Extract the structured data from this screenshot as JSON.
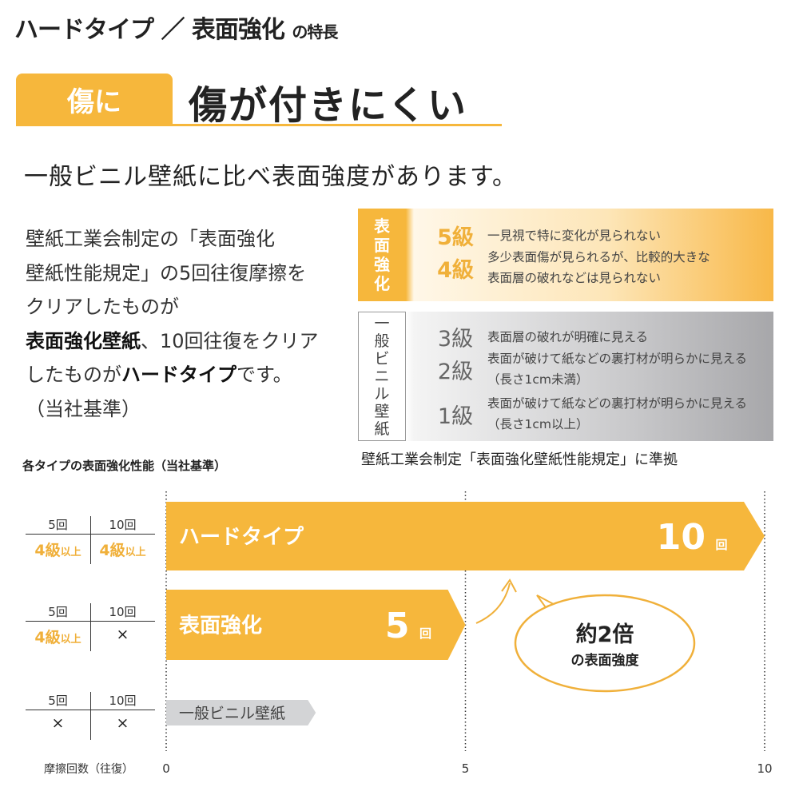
{
  "title": {
    "main": "ハードタイプ ／ 表面強化",
    "suffix": "の特長"
  },
  "tab_label": "傷に",
  "headline": "傷が付きにくい",
  "subheadline": "一般ビニル壁紙に比べ表面強度があります。",
  "description": {
    "line1": "壁紙工業会制定の「表面強化",
    "line2": "壁紙性能規定」の5回往復摩擦を",
    "line3": "クリアしたものが",
    "line4_bold": "表面強化壁紙",
    "line4_rest": "、10回往復をクリア",
    "line5_pre": "したものが",
    "line5_bold": "ハードタイプ",
    "line5_post": "です。",
    "line6": "（当社基準）"
  },
  "grades": {
    "surface": {
      "label": [
        "表",
        "面",
        "強",
        "化"
      ],
      "rows": [
        {
          "grade": "5級",
          "text": "一見視で特に変化が見られない",
          "text2": ""
        },
        {
          "grade": "4級",
          "text": "多少表面傷が見られるが、比較的大きな",
          "text2": "表面層の破れなどは見られない"
        }
      ]
    },
    "vinyl": {
      "label": [
        "一",
        "般",
        "ビ",
        "ニ",
        "ル",
        "壁",
        "紙"
      ],
      "rows": [
        {
          "grade": "3級",
          "text": "表面層の破れが明確に見える",
          "text2": ""
        },
        {
          "grade": "2級",
          "text": "表面が破けて紙などの裏打材が明らかに見える",
          "text2": "（長さ1cm未満）"
        },
        {
          "grade": "1級",
          "text": "表面が破けて紙などの裏打材が明らかに見える",
          "text2": "（長さ1cm以上）"
        }
      ]
    },
    "note": "壁紙工業会制定「表面強化壁紙性能規定」に準拠"
  },
  "chart_data": {
    "type": "bar",
    "orientation": "horizontal",
    "title": "各タイプの表面強化性能（当社基準）",
    "xlabel": "摩擦回数（往復）",
    "xlim": [
      0,
      10
    ],
    "xticks": [
      "0",
      "5",
      "10"
    ],
    "grid": "dotted vertical at 0, 5, 10",
    "categories": [
      "ハードタイプ",
      "表面強化",
      "一般ビニル壁紙"
    ],
    "values": [
      10,
      5,
      2.5
    ],
    "value_labels": [
      {
        "num": "10",
        "unit": "回"
      },
      {
        "num": "5",
        "unit": "回"
      },
      null
    ],
    "colors": [
      "#f6b73c",
      "#f6b73c",
      "#d3d4d6"
    ],
    "tables": [
      {
        "h1": "5回",
        "h2": "10回",
        "v1": "4級",
        "v1s": "以上",
        "v2": "4級",
        "v2s": "以上"
      },
      {
        "h1": "5回",
        "h2": "10回",
        "v1": "4級",
        "v1s": "以上",
        "v2": "×",
        "v2s": ""
      },
      {
        "h1": "5回",
        "h2": "10回",
        "v1": "×",
        "v1s": "",
        "v2": "×",
        "v2s": ""
      }
    ],
    "callout": {
      "line1": "約2倍",
      "line2": "の表面強度"
    }
  },
  "colors": {
    "accent": "#f6b73c",
    "grade_accent": "#f0b03a",
    "gray_bar": "#d3d4d6"
  }
}
